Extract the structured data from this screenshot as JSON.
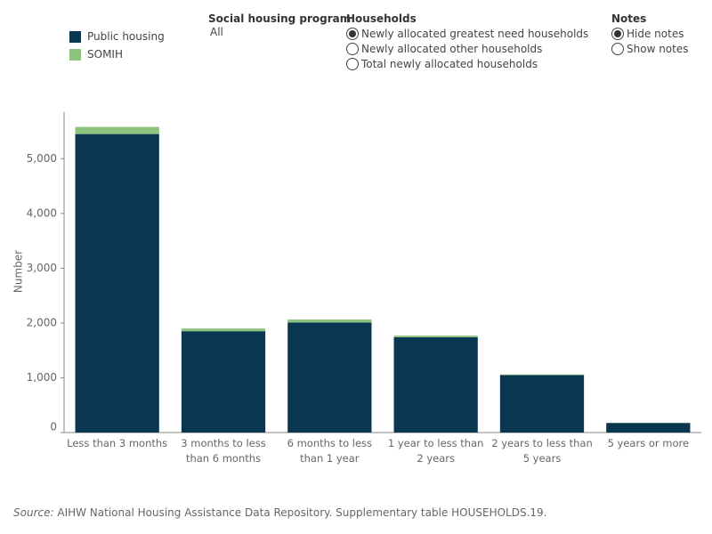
{
  "chart_data": {
    "type": "stacked_bar",
    "y_label": "Number",
    "categories": [
      "Less than 3 months",
      "3 months to less than 6 months",
      "6 months to less than 1 year",
      "1 year to less than 2 years",
      "2 years to less than 5 years",
      "5 years or more"
    ],
    "series": [
      {
        "name": "Public housing",
        "color": "#0b3650",
        "values": [
          5450,
          1850,
          2010,
          1740,
          1050,
          175
        ]
      },
      {
        "name": "SOMIH",
        "color": "#8cc47f",
        "values": [
          130,
          50,
          55,
          30,
          10,
          5
        ]
      }
    ],
    "ylim": [
      0,
      5850
    ],
    "yticks": [
      0,
      {
        "value": 1000,
        "label": "1,000"
      },
      {
        "value": 2000,
        "label": "2,000"
      },
      {
        "value": 3000,
        "label": "3,000"
      },
      {
        "value": 4000,
        "label": "4,000"
      },
      {
        "value": 5000,
        "label": "5,000"
      }
    ],
    "grid": false
  },
  "filters": [
    {
      "title": "Social housing program",
      "value": "All"
    },
    {
      "title": "Households",
      "options": [
        "Newly allocated greatest need households",
        "Newly allocated other households",
        "Total newly allocated households"
      ],
      "selected": 0
    },
    {
      "title": "Notes",
      "options": [
        "Hide notes",
        "Show notes"
      ],
      "selected": 0
    }
  ],
  "source": {
    "label": "Source:",
    "text": "AIHW National Housing Assistance Data Repository. Supplementary table HOUSEHOLDS.19."
  }
}
